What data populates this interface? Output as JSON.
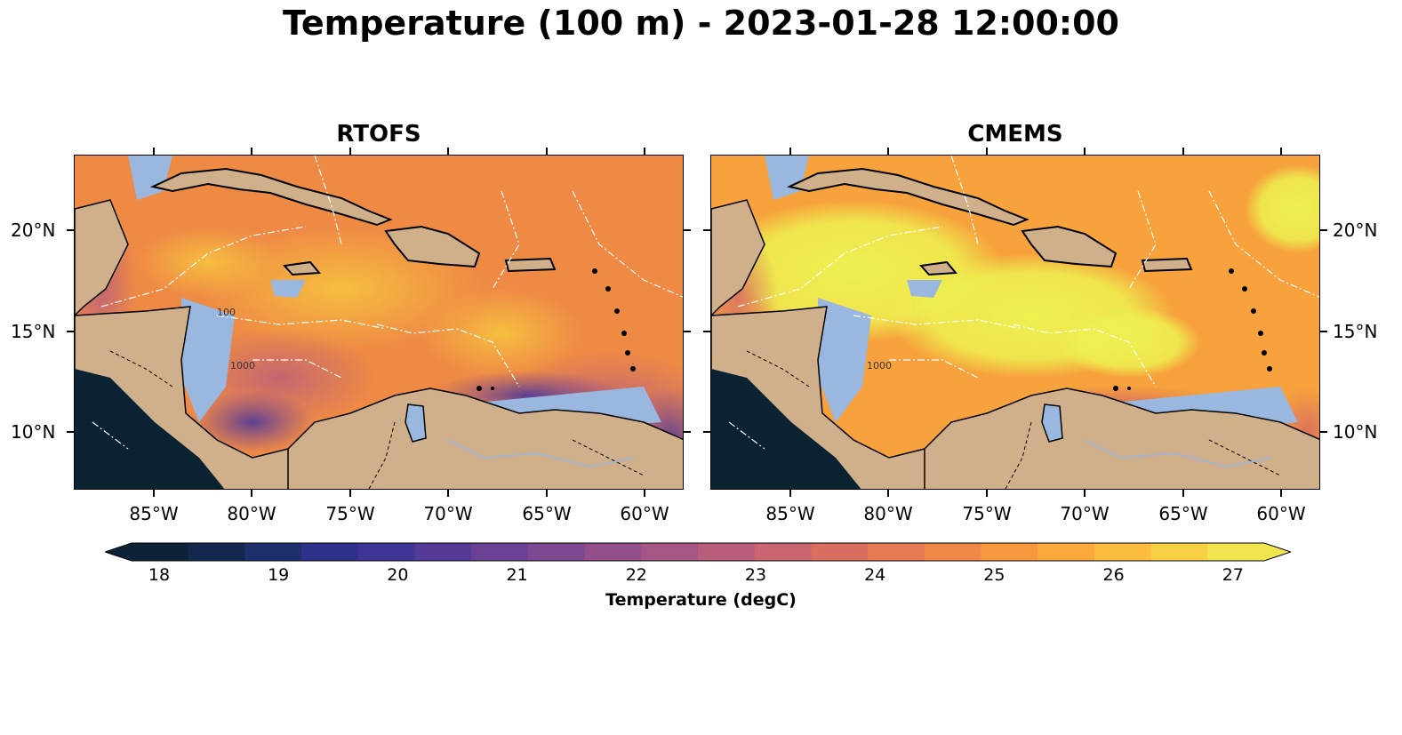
{
  "figure": {
    "title": "Temperature (100 m) - 2023-01-28 12:00:00"
  },
  "panels": [
    {
      "title": "RTOFS",
      "style": "rtofs"
    },
    {
      "title": "CMEMS",
      "style": "cmems"
    }
  ],
  "axes": {
    "lon_ticks": [
      "85°W",
      "80°W",
      "75°W",
      "70°W",
      "65°W",
      "60°W"
    ],
    "lat_ticks": [
      "20°N",
      "15°N",
      "10°N"
    ]
  },
  "contour_labels": [
    "1000",
    "1000",
    "100"
  ],
  "colorbar": {
    "label": "Temperature (degC)",
    "ticks": [
      "18",
      "19",
      "20",
      "21",
      "22",
      "23",
      "24",
      "25",
      "26",
      "27"
    ],
    "colors": [
      "#0d2236",
      "#14284f",
      "#1e2f6e",
      "#2e3189",
      "#3f3596",
      "#553b97",
      "#6a4194",
      "#7e4890",
      "#924f8b",
      "#a55684",
      "#b85e7b",
      "#c96570",
      "#d86f61",
      "#e67a52",
      "#f08847",
      "#f7983f",
      "#fba93b",
      "#fcbc3d",
      "#f8d044",
      "#f0e44f"
    ],
    "extend": "both"
  },
  "colors": {
    "land": "#cfb08a",
    "shelf": "#9ab7e0",
    "dark_basin": "#0b2233"
  }
}
